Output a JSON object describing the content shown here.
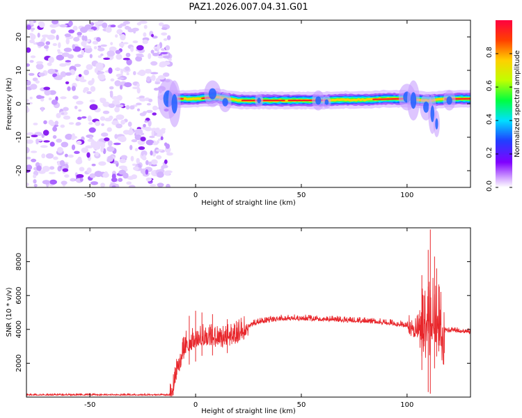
{
  "title": "PAZ1.2026.007.04.31.G01",
  "chart_data": [
    {
      "type": "heatmap",
      "name": "spectrogram",
      "xlabel": "Height of straight line (km)",
      "ylabel": "Frequency (Hz)",
      "xlim": [
        -80,
        130
      ],
      "ylim": [
        -25,
        25
      ],
      "xticks": [
        -50,
        0,
        50,
        100
      ],
      "yticks": [
        -20,
        -10,
        0,
        10,
        20
      ],
      "colorbar": {
        "label": "Normalized spectral amplitude",
        "range": [
          0,
          1
        ],
        "ticks": [
          0.0,
          0.2,
          0.4,
          0.6,
          0.8
        ],
        "colors": [
          "#ffffff",
          "#d8b0ff",
          "#8000ff",
          "#2040ff",
          "#00e0ff",
          "#00ff40",
          "#c0ff00",
          "#ffd000",
          "#ff4000",
          "#ff0040"
        ]
      },
      "noise_region_x": [
        -80,
        -14
      ],
      "ridge": {
        "x": [
          -14,
          0,
          10,
          20,
          30,
          40,
          50,
          60,
          70,
          80,
          90,
          100,
          110,
          120,
          130
        ],
        "y": [
          1.5,
          1.5,
          2.0,
          1.0,
          1.0,
          1.0,
          1.0,
          1.0,
          1.2,
          1.2,
          1.5,
          1.5,
          1.0,
          1.5,
          1.5
        ]
      }
    },
    {
      "type": "line",
      "name": "snr",
      "xlabel": "Height of straight line (km)",
      "ylabel": "SNR (10 * v/v)",
      "xlim": [
        -80,
        130
      ],
      "ylim": [
        0,
        10000
      ],
      "xticks": [
        -50,
        0,
        50,
        100
      ],
      "yticks": [
        2000,
        4000,
        6000,
        8000
      ],
      "color": "#e8262b",
      "envelope": {
        "x": [
          -80,
          -12,
          -11,
          -9,
          -7,
          -5,
          0,
          5,
          10,
          15,
          20,
          25,
          30,
          40,
          50,
          60,
          70,
          80,
          90,
          100,
          105,
          108,
          110,
          112,
          114,
          116,
          118,
          120,
          130
        ],
        "y": [
          150,
          150,
          400,
          1800,
          2500,
          3200,
          3600,
          3800,
          3600,
          3600,
          3900,
          4300,
          4500,
          4700,
          4700,
          4650,
          4600,
          4550,
          4450,
          4300,
          4200,
          4500,
          4500,
          5000,
          5000,
          4200,
          4000,
          4000,
          3900
        ]
      },
      "peaks": {
        "x": [
          -3,
          0,
          3,
          8,
          15,
          107,
          108,
          110,
          111,
          113,
          114,
          115
        ],
        "y": [
          4800,
          5100,
          5000,
          4900,
          4600,
          7200,
          6000,
          8700,
          9900,
          8300,
          7600,
          6500
        ]
      }
    }
  ]
}
